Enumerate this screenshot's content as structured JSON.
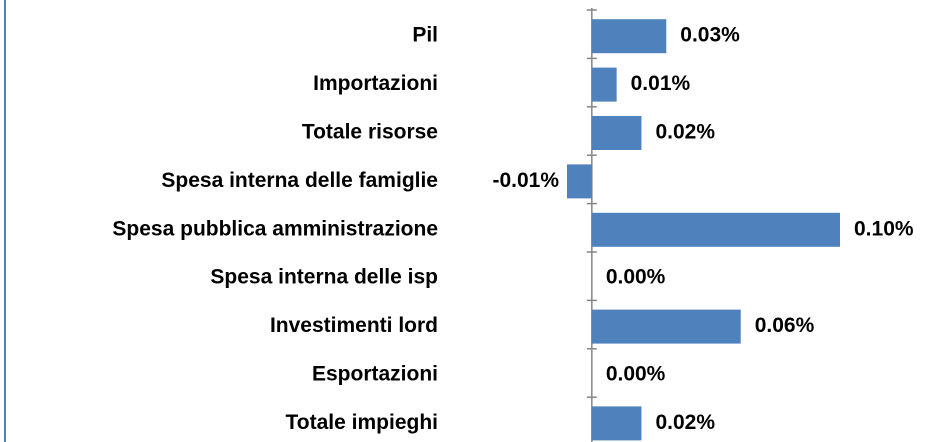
{
  "chart_data": {
    "type": "bar",
    "orientation": "horizontal",
    "categories": [
      "Pil",
      "Importazioni",
      "Totale risorse",
      "Spesa interna delle famiglie",
      "Spesa pubblica amministrazione",
      "Spesa interna delle isp",
      "Investimenti lord",
      "Esportazioni",
      "Totale impieghi"
    ],
    "values": [
      0.03,
      0.01,
      0.02,
      -0.01,
      0.1,
      0.0,
      0.06,
      0.0,
      0.02
    ],
    "value_labels": [
      "0.03%",
      "0.01%",
      "0.02%",
      "-0.01%",
      "0.10%",
      "0.00%",
      "0.06%",
      "0.00%",
      "0.02%"
    ],
    "color": "#4f81bd",
    "xlim": [
      -0.01,
      0.1
    ]
  }
}
